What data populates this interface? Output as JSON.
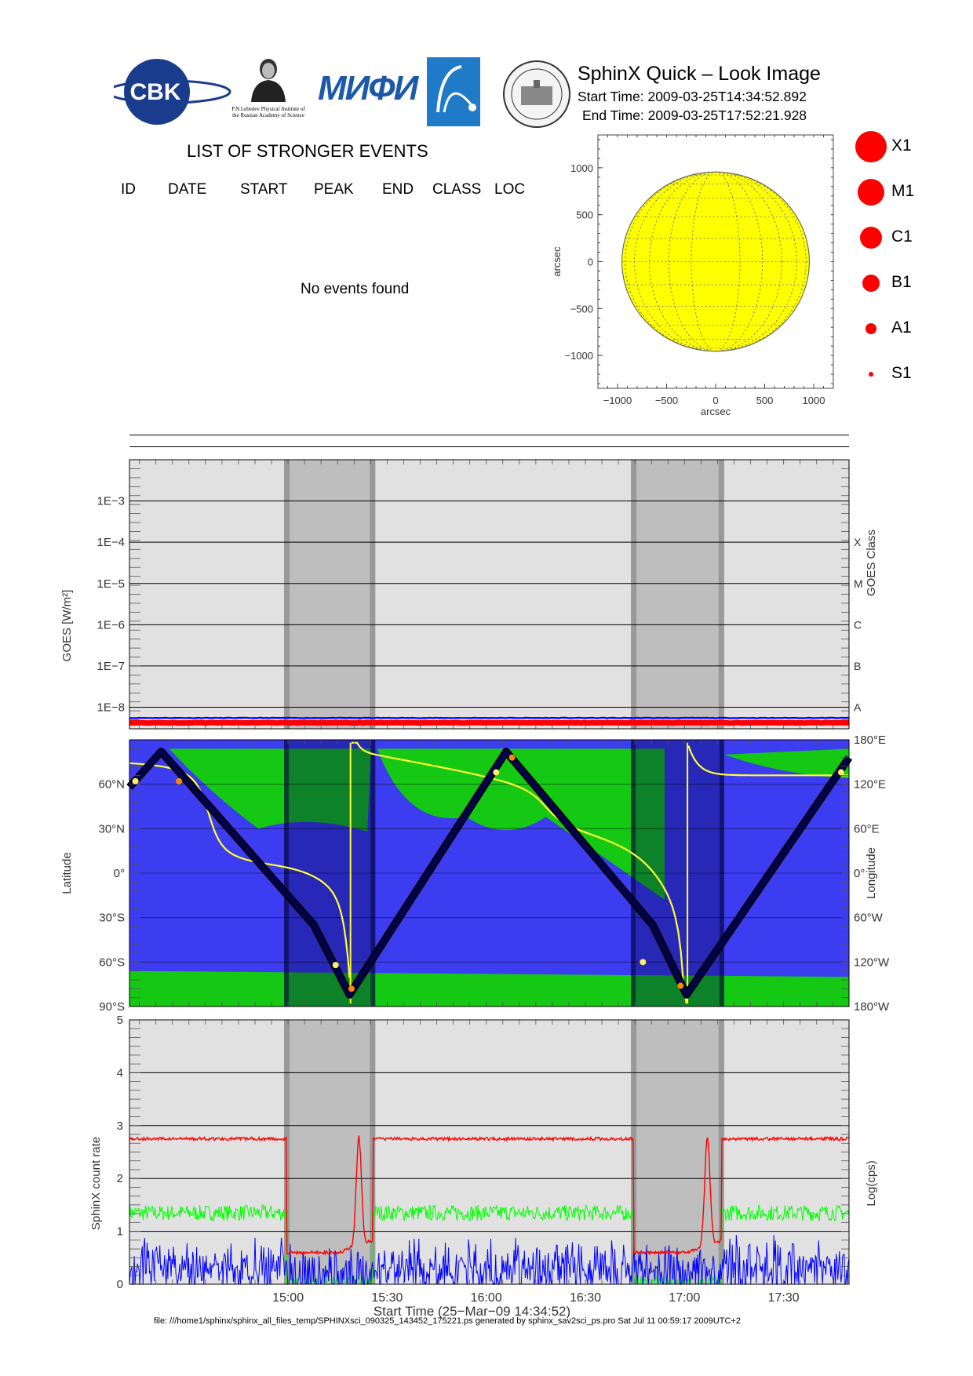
{
  "header": {
    "title": "SphinX Quick – Look Image",
    "start_time": "Start Time: 2009-03-25T14:34:52.892",
    "end_time": "End Time: 2009-03-25T17:52:21.928",
    "logos": [
      {
        "name": "CBK",
        "text": "CBK"
      },
      {
        "name": "lebedev",
        "text": "P.N.Lebedev Physical Institute of the Russian Academy of Science"
      },
      {
        "name": "mifi",
        "text": "МИФИ"
      },
      {
        "name": "comet",
        "text": ""
      },
      {
        "name": "seal",
        "text": ""
      }
    ]
  },
  "events": {
    "title": "LIST OF STRONGER EVENTS",
    "columns": [
      "ID",
      "DATE",
      "START",
      "PEAK",
      "END",
      "CLASS",
      "LOC"
    ],
    "empty_message": "No events found"
  },
  "legend": {
    "items": [
      {
        "label": "X1",
        "size": 5
      },
      {
        "label": "M1",
        "size": 4
      },
      {
        "label": "C1",
        "size": 3
      },
      {
        "label": "B1",
        "size": 2
      },
      {
        "label": "A1",
        "size": 1
      },
      {
        "label": "S1",
        "size": 0
      }
    ],
    "color": "#ff0000"
  },
  "footer": "file: ///home1/sphinx/sphinx_all_files_temp/SPHINXsci_090325_143452_175221.ps generated by sphinx_sav2sci_ps.pro Sat Jul 11 00:59:17 2009UTC+2",
  "colors": {
    "sun": "#ffff00",
    "panel_bg": "#e1e1e1",
    "eclipse": "#bebebe",
    "eclipse_edge": "#999999",
    "map_blue": "#3c3cf0",
    "map_green": "#14c814",
    "map_darkgreen": "#0a8c0a",
    "goes_red": "#ff0000",
    "goes_blue": "#0000ff",
    "count_red": "#ff0000",
    "count_green": "#00ff00",
    "count_blue": "#0000ff",
    "track": "#000050",
    "yellow": "#ffff33"
  },
  "chart_data": [
    {
      "type": "heatmap",
      "name": "solar-disk",
      "xlabel": "arcsec",
      "ylabel": "arcsec",
      "xlim": [
        -1200,
        1200
      ],
      "ylim": [
        -1350,
        1350
      ],
      "xticks": [
        -1000,
        -500,
        0,
        500,
        1000
      ],
      "xtick_labels": [
        "−1000",
        "−500",
        "0",
        "500",
        "1000"
      ],
      "yticks": [
        -1000,
        -500,
        0,
        500,
        1000
      ],
      "ytick_labels": [
        "−1000",
        "−500",
        "0",
        "500",
        "1000"
      ],
      "disk_radius": 955,
      "grid": true
    },
    {
      "type": "line",
      "name": "goes-flux",
      "ylabel": "GOES [W/m²]",
      "ylabel_right": "GOES Class",
      "yscale": "log",
      "ylim": [
        3e-09,
        0.01
      ],
      "yticks": [
        1e-08,
        1e-07,
        1e-06,
        1e-05,
        0.0001,
        0.001
      ],
      "ytick_labels": [
        "1E−8",
        "1E−7",
        "1E−6",
        "1E−5",
        "1E−4",
        "1E−3"
      ],
      "class_labels": [
        "A",
        "B",
        "C",
        "M",
        "X"
      ],
      "xlim": [
        14.2,
        17.83
      ],
      "eclipses": [
        [
          14.98,
          15.44
        ],
        [
          16.73,
          17.2
        ]
      ],
      "series": [
        {
          "name": "",
          "values": [
            5.5e-09,
            5.5e-09
          ]
        },
        {
          "name": "",
          "values": [
            4.2e-09,
            4.2e-09
          ]
        }
      ]
    },
    {
      "type": "line",
      "name": "orbit-map",
      "ylabel": "Latitude",
      "ylabel_right": "Longitude",
      "ylim": [
        -90,
        90
      ],
      "yticks": [
        -90,
        -60,
        -30,
        0,
        30,
        60
      ],
      "ytick_labels": [
        "90°S",
        "60°S",
        "30°S",
        "0°",
        "30°N",
        "60°N"
      ],
      "ytick_labels_right": [
        "180°W",
        "120°W",
        "60°W",
        "0°",
        "60°E",
        "120°E",
        "180°E"
      ],
      "xlim": [
        14.2,
        17.83
      ],
      "eclipses": [
        [
          14.98,
          15.44
        ],
        [
          16.73,
          17.2
        ]
      ],
      "track": {
        "x": [
          14.2,
          14.36,
          15.13,
          15.31,
          16.1,
          16.84,
          17.01,
          17.83
        ],
        "y": [
          58,
          82,
          -35,
          -82,
          82,
          -35,
          -82,
          78
        ]
      }
    },
    {
      "type": "line",
      "name": "sphinx-count-rate",
      "ylabel": "SphinX count rate",
      "ylabel_right": "Log(cps)",
      "xlabel": "Start Time (25−Mar−09 14:34:52)",
      "ylim": [
        0,
        5
      ],
      "yticks": [
        0,
        1,
        2,
        3,
        4,
        5
      ],
      "ytick_labels": [
        "0",
        "1",
        "2",
        "3",
        "4",
        "5"
      ],
      "xlim": [
        14.2,
        17.83
      ],
      "xticks": [
        15.0,
        15.5,
        16.0,
        16.5,
        17.0,
        17.5
      ],
      "xtick_labels": [
        "15:00",
        "15:30",
        "16:00",
        "16:30",
        "17:00",
        "17:30"
      ],
      "eclipses": [
        [
          14.98,
          15.44
        ],
        [
          16.73,
          17.2
        ]
      ],
      "series": [
        {
          "name": "",
          "levels": {
            "day": 2.75,
            "night": 0.6,
            "peak": 2.65
          }
        },
        {
          "name": "",
          "levels": {
            "day": 1.35,
            "night": 0.0
          }
        },
        {
          "name": "",
          "levels": {
            "day": 0.6,
            "night": 0.5
          }
        }
      ]
    }
  ]
}
